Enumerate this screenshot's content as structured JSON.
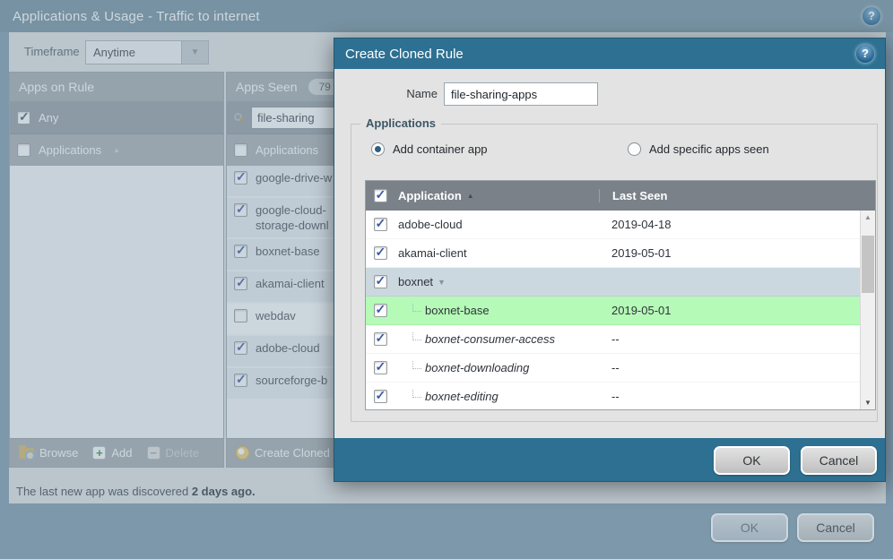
{
  "page": {
    "title": "Applications & Usage - Traffic to internet",
    "timeframe_label": "Timeframe",
    "timeframe_value": "Anytime",
    "status_prefix": "The last new app was discovered ",
    "status_bold": "2 days ago.",
    "ok_label": "OK",
    "cancel_label": "Cancel"
  },
  "icons": {
    "help": "?",
    "sort_asc": "▲",
    "expand_open": "▼",
    "dropdown_arrow": "▼",
    "scroll_up": "▲",
    "scroll_down": "▼",
    "plus": "+",
    "minus": "−"
  },
  "apps_on_rule": {
    "title": "Apps on Rule",
    "any_label": "Any",
    "column_header": "Applications",
    "toolbar": {
      "browse": "Browse",
      "add": "Add",
      "delete": "Delete"
    }
  },
  "apps_seen": {
    "title": "Apps Seen",
    "badge": "79",
    "search_value": "file-sharing",
    "column_header": "Applications",
    "toolbar_button": "Create Cloned R",
    "rows": [
      {
        "label": "google-drive-w",
        "checked": true
      },
      {
        "label": "google-cloud-storage-downl",
        "checked": true
      },
      {
        "label": "boxnet-base",
        "checked": true
      },
      {
        "label": "akamai-client",
        "checked": true
      },
      {
        "label": "webdav",
        "checked": false
      },
      {
        "label": "adobe-cloud",
        "checked": true
      },
      {
        "label": "sourceforge-b",
        "checked": true
      }
    ]
  },
  "dialog": {
    "title": "Create Cloned Rule",
    "name_label": "Name",
    "name_value": "file-sharing-apps",
    "section_title": "Applications",
    "radio_container": "Add container app",
    "radio_specific": "Add specific apps seen",
    "table": {
      "col_application": "Application",
      "col_last_seen": "Last Seen",
      "rows": [
        {
          "name": "adobe-cloud",
          "last_seen": "2019-04-18",
          "checked": true,
          "type": "normal"
        },
        {
          "name": "akamai-client",
          "last_seen": "2019-05-01",
          "checked": true,
          "type": "normal"
        },
        {
          "name": "boxnet",
          "last_seen": "",
          "checked": true,
          "type": "group"
        },
        {
          "name": "boxnet-base",
          "last_seen": "2019-05-01",
          "checked": true,
          "type": "child",
          "highlight": true
        },
        {
          "name": "boxnet-consumer-access",
          "last_seen": "--",
          "checked": true,
          "type": "child-italic"
        },
        {
          "name": "boxnet-downloading",
          "last_seen": "--",
          "checked": true,
          "type": "child-italic"
        },
        {
          "name": "boxnet-editing",
          "last_seen": "--",
          "checked": true,
          "type": "child-italic"
        }
      ]
    },
    "ok_label": "OK",
    "cancel_label": "Cancel"
  },
  "colors": {
    "accent_teal": "#2e7091",
    "page_background": "#7e99ab",
    "group_row": "#ccd8df",
    "highlight_row": "#b5fab7"
  }
}
